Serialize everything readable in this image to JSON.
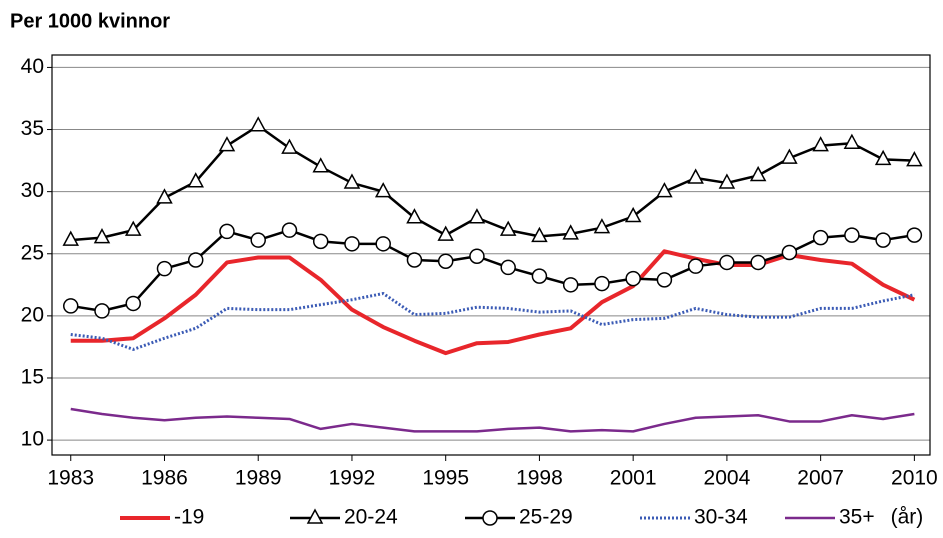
{
  "chart_data": {
    "type": "line",
    "title": "Per 1000 kvinnor",
    "xlabel": "(år)",
    "x": [
      1983,
      1984,
      1985,
      1986,
      1987,
      1988,
      1989,
      1990,
      1991,
      1992,
      1993,
      1994,
      1995,
      1996,
      1997,
      1998,
      1999,
      2000,
      2001,
      2002,
      2003,
      2004,
      2005,
      2006,
      2007,
      2008,
      2009,
      2010
    ],
    "series": [
      {
        "name": "-19",
        "color": "#e8262b",
        "width": 4,
        "values": [
          18,
          18,
          18.2,
          19.8,
          21.7,
          24.3,
          24.7,
          24.7,
          22.9,
          20.5,
          19.1,
          18,
          17,
          17.8,
          17.9,
          18.5,
          19,
          21.1,
          22.4,
          25.2,
          24.6,
          24.1,
          24.1,
          24.9,
          24.5,
          24.2,
          22.5,
          21.3
        ]
      },
      {
        "name": "20-24",
        "color": "#000000",
        "width": 2.5,
        "marker": "triangle",
        "values": [
          26.1,
          26.3,
          26.9,
          29.5,
          30.8,
          33.7,
          35.3,
          33.5,
          32,
          30.7,
          30,
          27.9,
          26.5,
          27.9,
          26.9,
          26.4,
          26.6,
          27.1,
          28,
          30,
          31.1,
          30.7,
          31.3,
          32.7,
          33.7,
          33.9,
          32.6,
          32.5
        ]
      },
      {
        "name": "25-29",
        "color": "#000000",
        "width": 2.5,
        "marker": "circle",
        "values": [
          20.8,
          20.4,
          21,
          23.8,
          24.5,
          26.8,
          26.1,
          26.9,
          26,
          25.8,
          25.8,
          24.5,
          24.4,
          24.8,
          23.9,
          23.2,
          22.5,
          22.6,
          23,
          22.9,
          24,
          24.3,
          24.3,
          25.1,
          26.3,
          26.5,
          26.1,
          26.5
        ]
      },
      {
        "name": "30-34",
        "color": "#3b5bb5",
        "width": 3,
        "dash": "dotted",
        "values": [
          18.5,
          18.2,
          17.3,
          18.2,
          19,
          20.6,
          20.5,
          20.5,
          20.9,
          21.3,
          21.8,
          20.1,
          20.2,
          20.7,
          20.6,
          20.3,
          20.4,
          19.3,
          19.7,
          19.8,
          20.6,
          20.1,
          19.9,
          19.9,
          20.6,
          20.6,
          21.2,
          21.7
        ]
      },
      {
        "name": "35+",
        "color": "#7b2a8c",
        "width": 2.5,
        "values": [
          12.5,
          12.1,
          11.8,
          11.6,
          11.8,
          11.9,
          11.8,
          11.7,
          10.9,
          11.3,
          11,
          10.7,
          10.7,
          10.7,
          10.9,
          11,
          10.7,
          10.8,
          10.7,
          11.3,
          11.8,
          11.9,
          12,
          11.5,
          11.5,
          12,
          11.7,
          12.1
        ]
      }
    ],
    "xlim": [
      1982.4,
      2010.5
    ],
    "xticks": [
      1983,
      1986,
      1989,
      1992,
      1995,
      1998,
      2001,
      2004,
      2007,
      2010
    ],
    "ylim": [
      8.8,
      41
    ],
    "yticks": [
      10,
      15,
      20,
      25,
      30,
      35,
      40
    ],
    "grid": true
  }
}
